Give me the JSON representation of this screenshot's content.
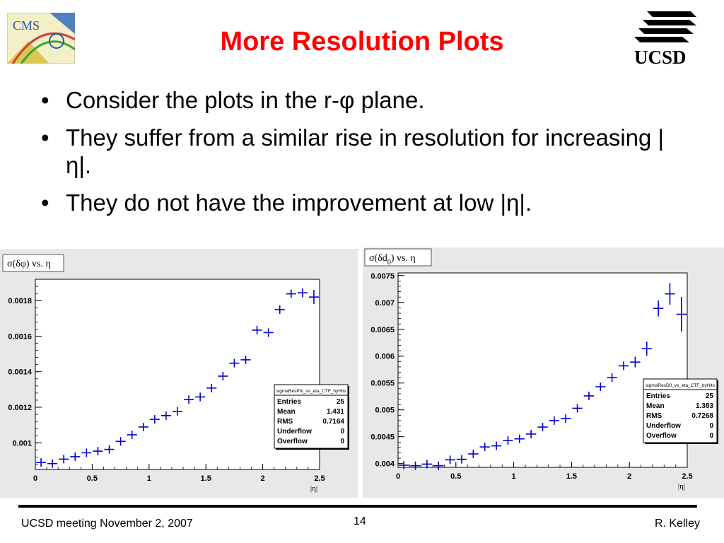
{
  "slide": {
    "title": "More Resolution Plots",
    "bullets": [
      "Consider the plots in the r-φ plane.",
      "They suffer from a similar rise in resolution for increasing |η|.",
      "They do not have the improvement at low |η|."
    ],
    "bullet_symbol": "•",
    "logo_left": "CMS",
    "logo_right": "UCSD",
    "footer_left": "UCSD meeting November 2, 2007",
    "page_number": "14",
    "footer_right": "R. Kelley"
  },
  "colors": {
    "title": "#ff0000",
    "marker": "#0000cc",
    "frame_bg": "#e8e8e8"
  },
  "chart_data": [
    {
      "type": "scatter",
      "title": "σ(δφ) vs. η",
      "xlabel": "|η|",
      "ylabel": "",
      "xlim": [
        0,
        2.5
      ],
      "ylim": [
        0.00085,
        0.00192
      ],
      "x_ticks": [
        "0",
        "0.5",
        "1",
        "1.5",
        "2",
        "2.5"
      ],
      "y_ticks": [
        "0.001",
        "0.0012",
        "0.0014",
        "0.0016",
        "0.0018"
      ],
      "series": [
        {
          "x": [
            0.05,
            0.15,
            0.25,
            0.35,
            0.45,
            0.55,
            0.65,
            0.75,
            0.85,
            0.95,
            1.05,
            1.15,
            1.25,
            1.35,
            1.45,
            1.55,
            1.65,
            1.75,
            1.85,
            1.95,
            2.05,
            2.15,
            2.25,
            2.35,
            2.45
          ],
          "values": [
            0.000889,
            0.000883,
            0.000908,
            0.000922,
            0.000944,
            0.000953,
            0.000963,
            0.001008,
            0.001045,
            0.001089,
            0.001132,
            0.001153,
            0.001177,
            0.001243,
            0.001258,
            0.001308,
            0.001375,
            0.001448,
            0.001467,
            0.001634,
            0.00162,
            0.001749,
            0.001838,
            0.001844,
            0.00182
          ],
          "errors": [
            4e-06,
            4e-06,
            4e-06,
            4e-06,
            4e-06,
            4e-06,
            4e-06,
            4e-06,
            4e-06,
            4e-06,
            4e-06,
            4e-06,
            4e-06,
            5e-06,
            5e-06,
            5e-06,
            6e-06,
            6e-06,
            7e-06,
            9e-06,
            1e-05,
            1.5e-05,
            2e-05,
            2.5e-05,
            4e-05
          ]
        }
      ],
      "stats": {
        "name": "sigmaResPhi_vs_eta_CTF_byHits",
        "rows": [
          [
            "Entries",
            "25"
          ],
          [
            "Mean",
            "1.431"
          ],
          [
            "RMS",
            "0.7164"
          ],
          [
            "Underflow",
            "0"
          ],
          [
            "Overflow",
            "0"
          ]
        ]
      }
    },
    {
      "type": "scatter",
      "title_prefix": "σ(δd",
      "title_sub": "0",
      "title_suffix": ") vs. η",
      "xlabel": "|η|",
      "ylabel": "",
      "xlim": [
        0,
        2.5
      ],
      "ylim": [
        0.00393,
        0.00755
      ],
      "x_ticks": [
        "0",
        "0.5",
        "1",
        "1.5",
        "2",
        "2.5"
      ],
      "y_ticks": [
        "0.004",
        "0.0045",
        "0.005",
        "0.0055",
        "0.006",
        "0.0065",
        "0.007",
        "0.0075"
      ],
      "series": [
        {
          "x": [
            0.05,
            0.15,
            0.25,
            0.35,
            0.45,
            0.55,
            0.65,
            0.75,
            0.85,
            0.95,
            1.05,
            1.15,
            1.25,
            1.35,
            1.45,
            1.55,
            1.65,
            1.75,
            1.85,
            1.95,
            2.05,
            2.15,
            2.25,
            2.35,
            2.45
          ],
          "values": [
            0.00397,
            0.00396,
            0.00399,
            0.00396,
            0.00407,
            0.00408,
            0.00418,
            0.00431,
            0.00433,
            0.00443,
            0.00446,
            0.00455,
            0.00468,
            0.0048,
            0.00484,
            0.00503,
            0.00526,
            0.00543,
            0.0056,
            0.00582,
            0.00589,
            0.00614,
            0.00689,
            0.00716,
            0.00678
          ],
          "errors": [
            2e-05,
            2e-05,
            2e-05,
            2e-05,
            2e-05,
            2e-05,
            2e-05,
            2e-05,
            2e-05,
            2e-05,
            2e-05,
            2e-05,
            3e-05,
            3e-05,
            3e-05,
            4e-05,
            5e-05,
            6e-05,
            7e-05,
            8e-05,
            0.0001,
            0.00013,
            0.00015,
            0.0002,
            0.00032
          ]
        }
      ],
      "stats": {
        "name": "sigmaResD0_vs_eta_CTF_byHits",
        "rows": [
          [
            "Entries",
            "25"
          ],
          [
            "Mean",
            "1.383"
          ],
          [
            "RMS",
            "0.7268"
          ],
          [
            "Underflow",
            "0"
          ],
          [
            "Overflow",
            "0"
          ]
        ]
      }
    }
  ]
}
